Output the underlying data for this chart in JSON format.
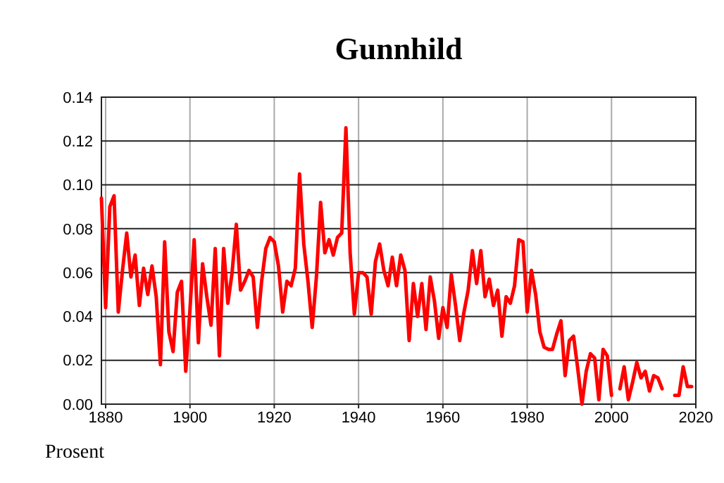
{
  "chart_data": {
    "type": "line",
    "title": "Gunnhild",
    "ylabel": "Prosent",
    "x": [
      1879,
      1880,
      1881,
      1882,
      1883,
      1884,
      1885,
      1886,
      1887,
      1888,
      1889,
      1890,
      1891,
      1892,
      1893,
      1894,
      1895,
      1896,
      1897,
      1898,
      1899,
      1900,
      1901,
      1902,
      1903,
      1904,
      1905,
      1906,
      1907,
      1908,
      1909,
      1910,
      1911,
      1912,
      1913,
      1914,
      1915,
      1916,
      1917,
      1918,
      1919,
      1920,
      1921,
      1922,
      1923,
      1924,
      1925,
      1926,
      1927,
      1928,
      1929,
      1930,
      1931,
      1932,
      1933,
      1934,
      1935,
      1936,
      1937,
      1938,
      1939,
      1940,
      1941,
      1942,
      1943,
      1944,
      1945,
      1946,
      1947,
      1948,
      1949,
      1950,
      1951,
      1952,
      1953,
      1954,
      1955,
      1956,
      1957,
      1958,
      1959,
      1960,
      1961,
      1962,
      1963,
      1964,
      1965,
      1966,
      1967,
      1968,
      1969,
      1970,
      1971,
      1972,
      1973,
      1974,
      1975,
      1976,
      1977,
      1978,
      1979,
      1980,
      1981,
      1982,
      1983,
      1984,
      1985,
      1986,
      1987,
      1988,
      1989,
      1990,
      1991,
      1992,
      1993,
      1994,
      1995,
      1996,
      1997,
      1998,
      1999,
      2000,
      2001,
      2002,
      2003,
      2004,
      2005,
      2006,
      2007,
      2008,
      2009,
      2010,
      2011,
      2012,
      2013,
      2014,
      2015,
      2016,
      2017,
      2018,
      2019
    ],
    "series": [
      {
        "color": "#ff0000",
        "values": [
          0.094,
          0.044,
          0.09,
          0.095,
          0.042,
          0.061,
          0.078,
          0.058,
          0.068,
          0.045,
          0.062,
          0.05,
          0.063,
          0.049,
          0.018,
          0.074,
          0.033,
          0.024,
          0.051,
          0.056,
          0.015,
          0.043,
          0.075,
          0.028,
          0.064,
          0.049,
          0.036,
          0.071,
          0.022,
          0.071,
          0.046,
          0.06,
          0.082,
          0.052,
          0.056,
          0.061,
          0.058,
          0.035,
          0.056,
          0.071,
          0.076,
          0.074,
          0.063,
          0.042,
          0.056,
          0.054,
          0.062,
          0.105,
          0.073,
          0.056,
          0.035,
          0.058,
          0.092,
          0.069,
          0.075,
          0.068,
          0.076,
          0.078,
          0.126,
          0.069,
          0.041,
          0.06,
          0.06,
          0.058,
          0.041,
          0.065,
          0.073,
          0.061,
          0.054,
          0.067,
          0.054,
          0.068,
          0.061,
          0.029,
          0.055,
          0.04,
          0.055,
          0.034,
          0.058,
          0.047,
          0.03,
          0.044,
          0.035,
          0.059,
          0.045,
          0.029,
          0.042,
          0.052,
          0.07,
          0.055,
          0.07,
          0.049,
          0.057,
          0.045,
          0.052,
          0.031,
          0.049,
          0.046,
          0.054,
          0.075,
          0.074,
          0.042,
          0.061,
          0.05,
          0.033,
          0.026,
          0.025,
          0.025,
          0.032,
          0.038,
          0.013,
          0.029,
          0.031,
          0.016,
          0.0,
          0.015,
          0.023,
          0.021,
          0.002,
          0.025,
          0.022,
          0.004,
          null,
          0.007,
          0.017,
          0.002,
          0.01,
          0.019,
          0.012,
          0.015,
          0.006,
          0.013,
          0.012,
          0.007,
          null,
          null,
          0.004,
          0.004,
          0.017,
          0.008,
          0.008
        ]
      }
    ],
    "xlim": [
      1879,
      2020
    ],
    "xticks": [
      1880,
      1900,
      1920,
      1940,
      1960,
      1980,
      2000,
      2020
    ],
    "ylim": [
      0,
      0.14
    ],
    "yticks": [
      {
        "value": 0,
        "label": "0.00"
      },
      {
        "value": 0.02,
        "label": "0.02"
      },
      {
        "value": 0.04,
        "label": "0.04"
      },
      {
        "value": 0.06,
        "label": "0.06"
      },
      {
        "value": 0.08,
        "label": "0.08"
      },
      {
        "value": 0.1,
        "label": "0.10"
      },
      {
        "value": 0.12,
        "label": "0.12"
      },
      {
        "value": 0.14,
        "label": "0.14"
      }
    ],
    "grid": true,
    "marker": "none",
    "line_style": "solid"
  }
}
